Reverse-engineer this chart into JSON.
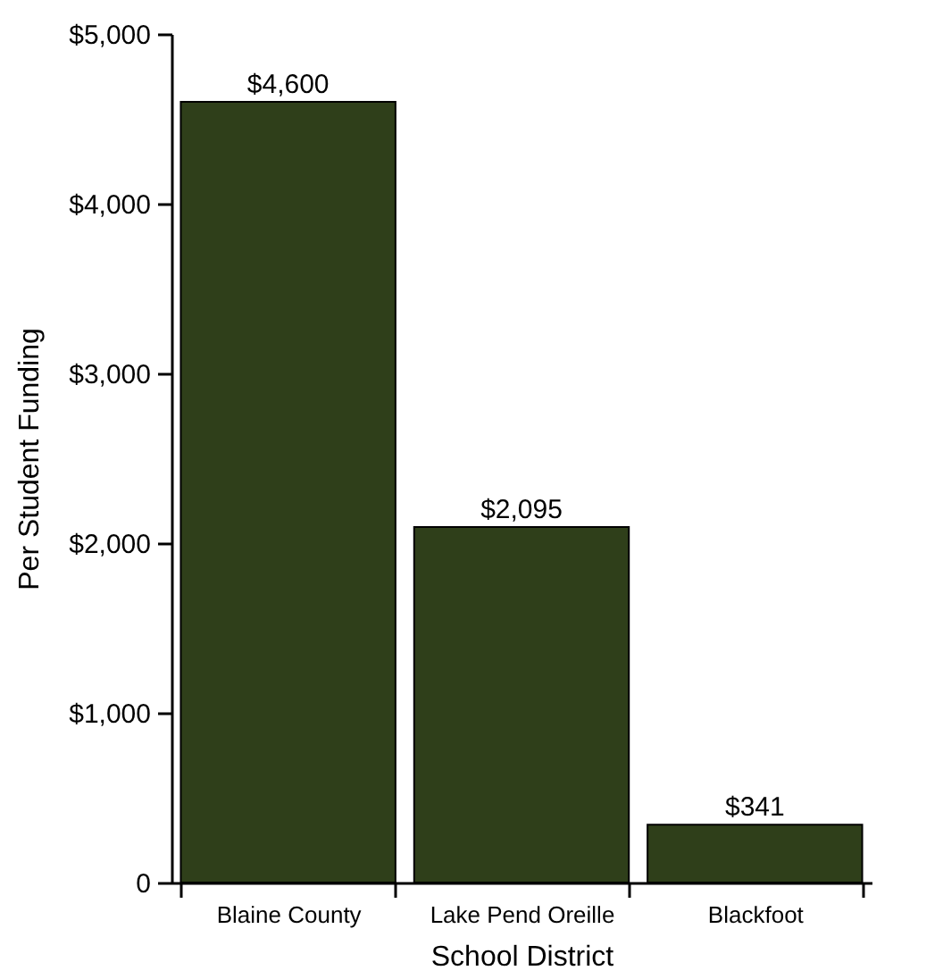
{
  "chart_data": {
    "type": "bar",
    "xlabel": "School District",
    "ylabel": "Per Student Funding",
    "categories": [
      "Blaine County",
      "Lake Pend Oreille",
      "Blackfoot"
    ],
    "values": [
      4600,
      2095,
      341
    ],
    "value_labels": [
      "$4,600",
      "$2,095",
      "$341"
    ],
    "color": "#2f3f1a",
    "ylim": [
      0,
      5000
    ],
    "yticks": [
      {
        "value": 0,
        "label": "0"
      },
      {
        "value": 1000,
        "label": "$1,000"
      },
      {
        "value": 2000,
        "label": "$2,000"
      },
      {
        "value": 3000,
        "label": "$3,000"
      },
      {
        "value": 4000,
        "label": "$4,000"
      },
      {
        "value": 5000,
        "label": "$5,000"
      }
    ],
    "grid": false
  }
}
